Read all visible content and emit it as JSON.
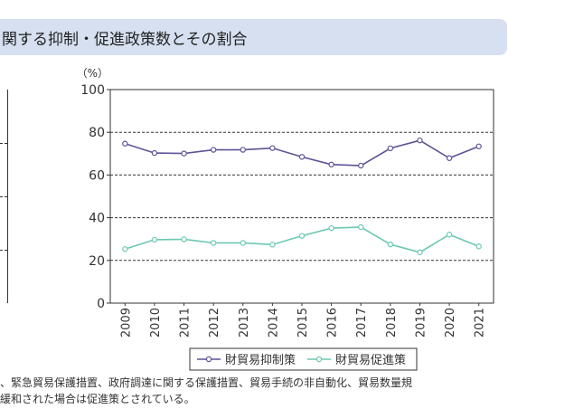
{
  "header": {
    "title": "関する抑制・促進政策数とその割合"
  },
  "note": {
    "line1": "、緊急貿易保護措置、政府調達に関する保護措置、貿易手続の非自動化、貿易数量規",
    "line2": "緩和された場合は促進策とされている。"
  },
  "chart_data": {
    "type": "line",
    "title": "",
    "xlabel": "",
    "ylabel": "（%）",
    "ylim": [
      0,
      100
    ],
    "yticks": [
      0,
      20,
      40,
      60,
      80,
      100
    ],
    "grid": "dashed horizontal",
    "legend_position": "bottom",
    "x": [
      "2009",
      "2010",
      "2011",
      "2012",
      "2013",
      "2014",
      "2015",
      "2016",
      "2017",
      "2018",
      "2019",
      "2020",
      "2021"
    ],
    "series": [
      {
        "name": "財貿易抑制策",
        "color": "#5b5496",
        "values": [
          74.7,
          70.3,
          70.1,
          71.8,
          71.8,
          72.6,
          68.5,
          64.9,
          64.4,
          72.5,
          76.2,
          67.9,
          73.4
        ]
      },
      {
        "name": "財貿易促進策",
        "color": "#6cc9b0",
        "values": [
          25.3,
          29.7,
          29.9,
          28.2,
          28.2,
          27.4,
          31.5,
          35.1,
          35.6,
          27.5,
          23.8,
          32.1,
          26.6
        ]
      }
    ]
  }
}
